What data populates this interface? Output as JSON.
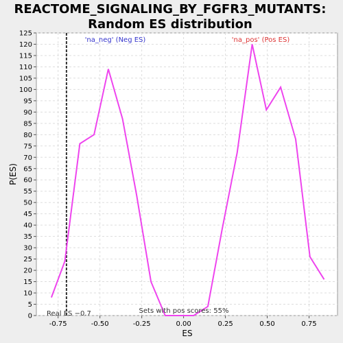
{
  "chart_data": {
    "type": "line",
    "title": "REACTOME_SIGNALING_BY_FGFR3_MUTANTS:",
    "subtitle": "Random ES distribution",
    "xlabel": "ES",
    "ylabel": "P(ES)",
    "xlim": [
      -0.88,
      0.92
    ],
    "ylim": [
      0,
      125
    ],
    "x_ticks": [
      -0.75,
      -0.5,
      -0.25,
      0.0,
      0.25,
      0.5,
      0.75
    ],
    "x_tick_labels": [
      "-0.75",
      "-0.50",
      "-0.25",
      "0.00",
      "0.25",
      "0.50",
      "0.75"
    ],
    "y_ticks": [
      0,
      5,
      10,
      15,
      20,
      25,
      30,
      35,
      40,
      45,
      50,
      55,
      60,
      65,
      70,
      75,
      80,
      85,
      90,
      95,
      100,
      105,
      110,
      115,
      120,
      125
    ],
    "grid": true,
    "series": [
      {
        "color": "#ee44ee",
        "x": [
          -0.79,
          -0.71,
          -0.62,
          -0.535,
          -0.45,
          -0.365,
          -0.28,
          -0.195,
          -0.11,
          -0.025,
          0.06,
          0.145,
          0.23,
          0.32,
          0.41,
          0.495,
          0.58,
          0.67,
          0.755,
          0.84
        ],
        "y": [
          8,
          24,
          76,
          80,
          109,
          87,
          53,
          15,
          0,
          0,
          0,
          4,
          38,
          72,
          120,
          91,
          101,
          78,
          26,
          16
        ]
      }
    ],
    "real_es": -0.7,
    "annotations": {
      "neg_label": "'na_neg' (Neg ES)",
      "neg_color": "#3333cc",
      "pos_label": "'na_pos' (Pos ES)",
      "pos_color": "#dd3333",
      "real_es_label": "Real ES −0.7",
      "pos_scores_label": "Sets with pos scores: 55%"
    }
  }
}
